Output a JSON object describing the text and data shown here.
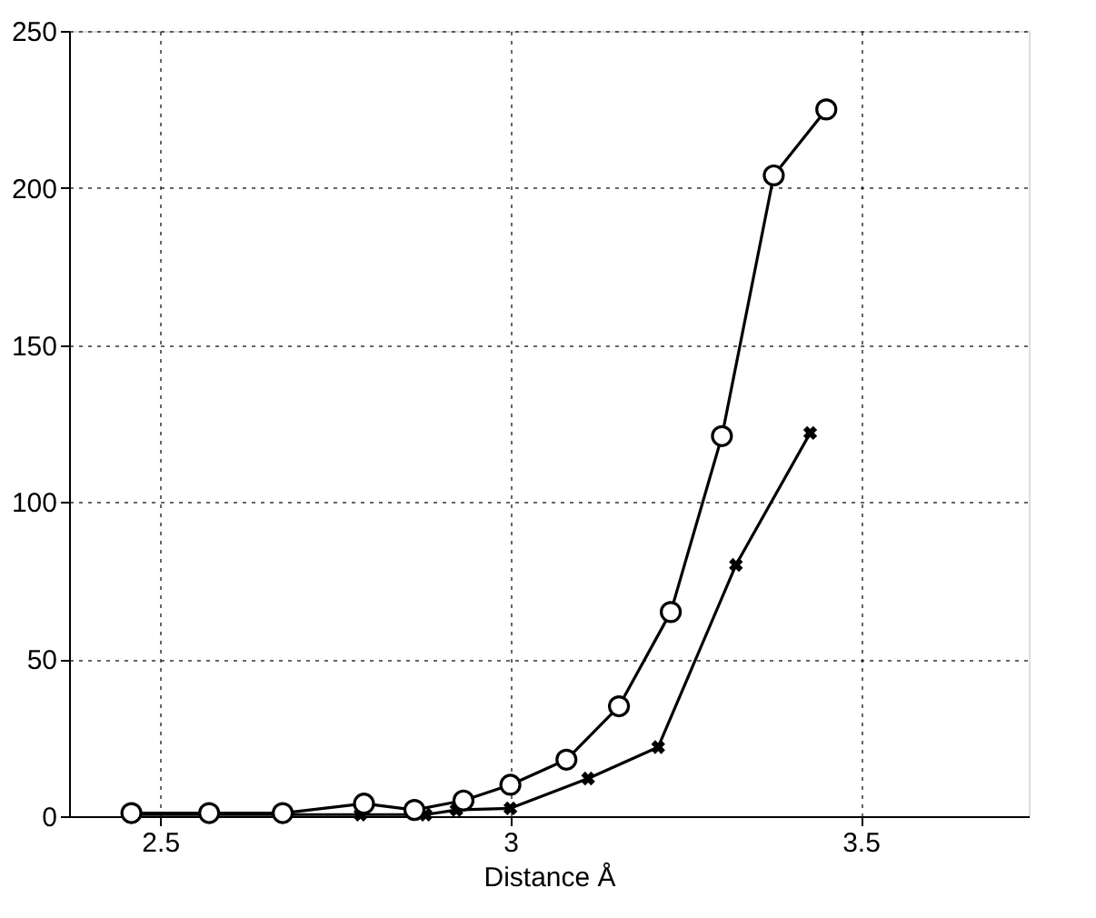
{
  "chart_data": {
    "type": "line",
    "xlabel": "Distance Å",
    "xlim": [
      2.37,
      3.74
    ],
    "ylim": [
      0,
      250
    ],
    "xticks": [
      2.5,
      3,
      3.5
    ],
    "yticks": [
      0,
      50,
      100,
      150,
      200,
      250
    ],
    "grid": true,
    "series": [
      {
        "color": "#000000",
        "marker": "cross",
        "x": [
          2.459,
          2.57,
          2.675,
          2.786,
          2.879,
          2.923,
          3.0,
          3.111,
          3.211,
          3.322,
          3.428
        ],
        "values": [
          0.5,
          0.5,
          0.5,
          0.5,
          0.5,
          2,
          2.5,
          12,
          22,
          80,
          122
        ]
      },
      {
        "color": "#000000",
        "marker": "circle",
        "x": [
          2.459,
          2.57,
          2.675,
          2.791,
          2.863,
          2.933,
          3.0,
          3.08,
          3.155,
          3.229,
          3.302,
          3.376,
          3.451
        ],
        "values": [
          1,
          1,
          1,
          4,
          2,
          5,
          10,
          18,
          35,
          65,
          121,
          204,
          225
        ]
      }
    ]
  }
}
